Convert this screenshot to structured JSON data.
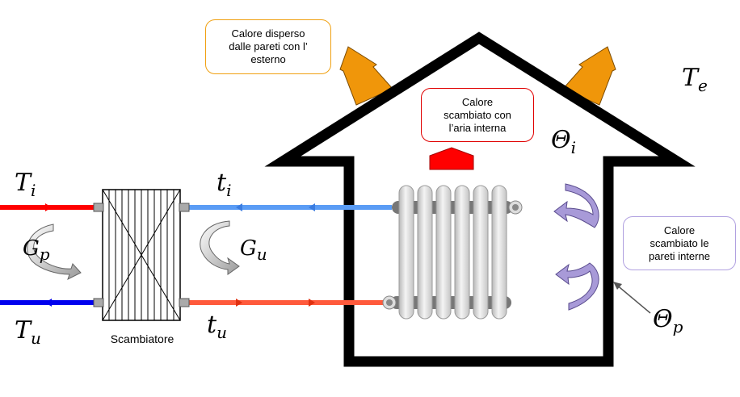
{
  "callouts": {
    "external_loss": "Calore  disperso\ndalle pareti con l’\nesterno",
    "internal_air": "Calore\nscambiato con\nl’aria interna",
    "internal_walls": "Calore\nscambiato le\npareti interne"
  },
  "labels": {
    "exchanger": "Scambiatore",
    "Ti": {
      "main": "T",
      "sub": "i"
    },
    "Tu": {
      "main": "T",
      "sub": "u"
    },
    "ti": {
      "main": "t",
      "sub": "i"
    },
    "tu": {
      "main": "t",
      "sub": "u"
    },
    "Gp": {
      "main": "G",
      "sub": "p"
    },
    "Gu": {
      "main": "G",
      "sub": "u"
    },
    "Te": {
      "main": "T",
      "sub": "e"
    },
    "Theta_i": {
      "main": "Θ",
      "sub": "i"
    },
    "Theta_p": {
      "main": "Θ",
      "sub": "p"
    }
  },
  "colors": {
    "hot_primary": "#ff0000",
    "cold_primary": "#0000ee",
    "hot_secondary": "#ff5a3c",
    "cold_secondary": "#5a9cf5",
    "external_arrow": "#f0960a",
    "external_callout_border": "#f0a010",
    "air_callout_border": "#e00000",
    "walls_callout_border": "#b0a0e0",
    "wall_arrow": "#a89ad8",
    "house_outline": "#000000"
  }
}
